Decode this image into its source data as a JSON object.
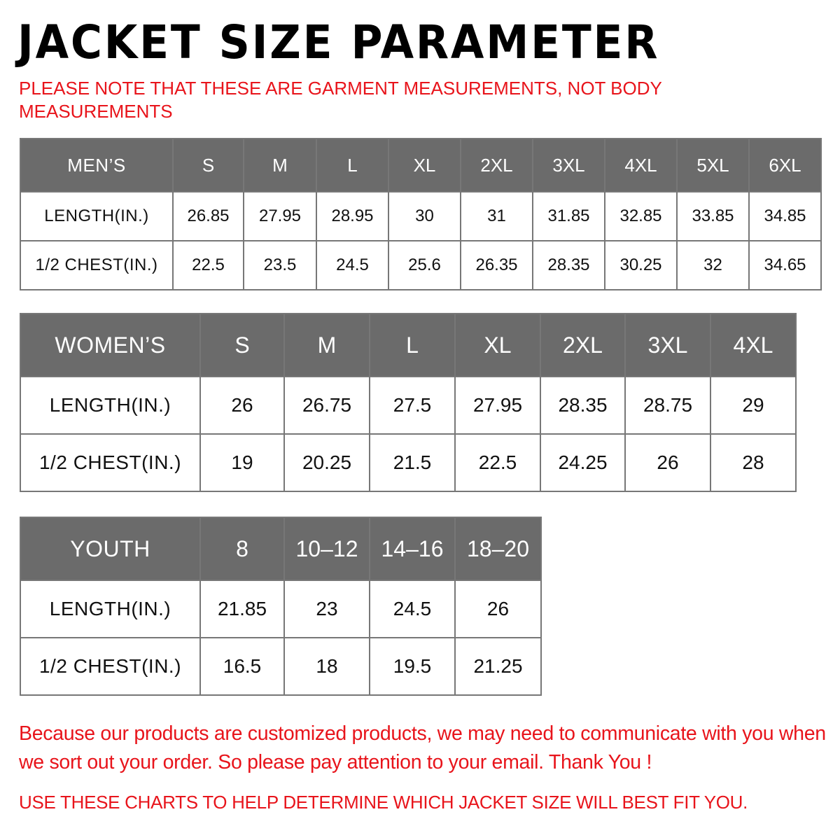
{
  "title": "JACKET SIZE PARAMETER",
  "note": "PLEASE NOTE THAT THESE ARE GARMENT MEASUREMENTS, NOT BODY MEASUREMENTS",
  "colors": {
    "header_bg": "#6b6b6b",
    "accent_red": "#e8141b"
  },
  "tables": {
    "mens": {
      "headers": [
        "MEN’S",
        "S",
        "M",
        "L",
        "XL",
        "2XL",
        "3XL",
        "4XL",
        "5XL",
        "6XL"
      ],
      "rows": [
        [
          "LENGTH(IN.)",
          "26.85",
          "27.95",
          "28.95",
          "30",
          "31",
          "31.85",
          "32.85",
          "33.85",
          "34.85"
        ],
        [
          "1/2 CHEST(IN.)",
          "22.5",
          "23.5",
          "24.5",
          "25.6",
          "26.35",
          "28.35",
          "30.25",
          "32",
          "34.65"
        ]
      ]
    },
    "womens": {
      "headers": [
        "WOMEN’S",
        "S",
        "M",
        "L",
        "XL",
        "2XL",
        "3XL",
        "4XL"
      ],
      "rows": [
        [
          "LENGTH(IN.)",
          "26",
          "26.75",
          "27.5",
          "27.95",
          "28.35",
          "28.75",
          "29"
        ],
        [
          "1/2 CHEST(IN.)",
          "19",
          "20.25",
          "21.5",
          "22.5",
          "24.25",
          "26",
          "28"
        ]
      ]
    },
    "youth": {
      "headers": [
        "YOUTH",
        "8",
        "10–12",
        "14–16",
        "18–20"
      ],
      "rows": [
        [
          "LENGTH(IN.)",
          "21.85",
          "23",
          "24.5",
          "26"
        ],
        [
          "1/2 CHEST(IN.)",
          "16.5",
          "18",
          "19.5",
          "21.25"
        ]
      ]
    }
  },
  "footer": "Because our products are customized products, we may need to communicate with you when we sort out your order. So please pay attention to your email. Thank You !",
  "footer2": "USE THESE CHARTS TO HELP DETERMINE WHICH JACKET SIZE WILL BEST FIT YOU."
}
